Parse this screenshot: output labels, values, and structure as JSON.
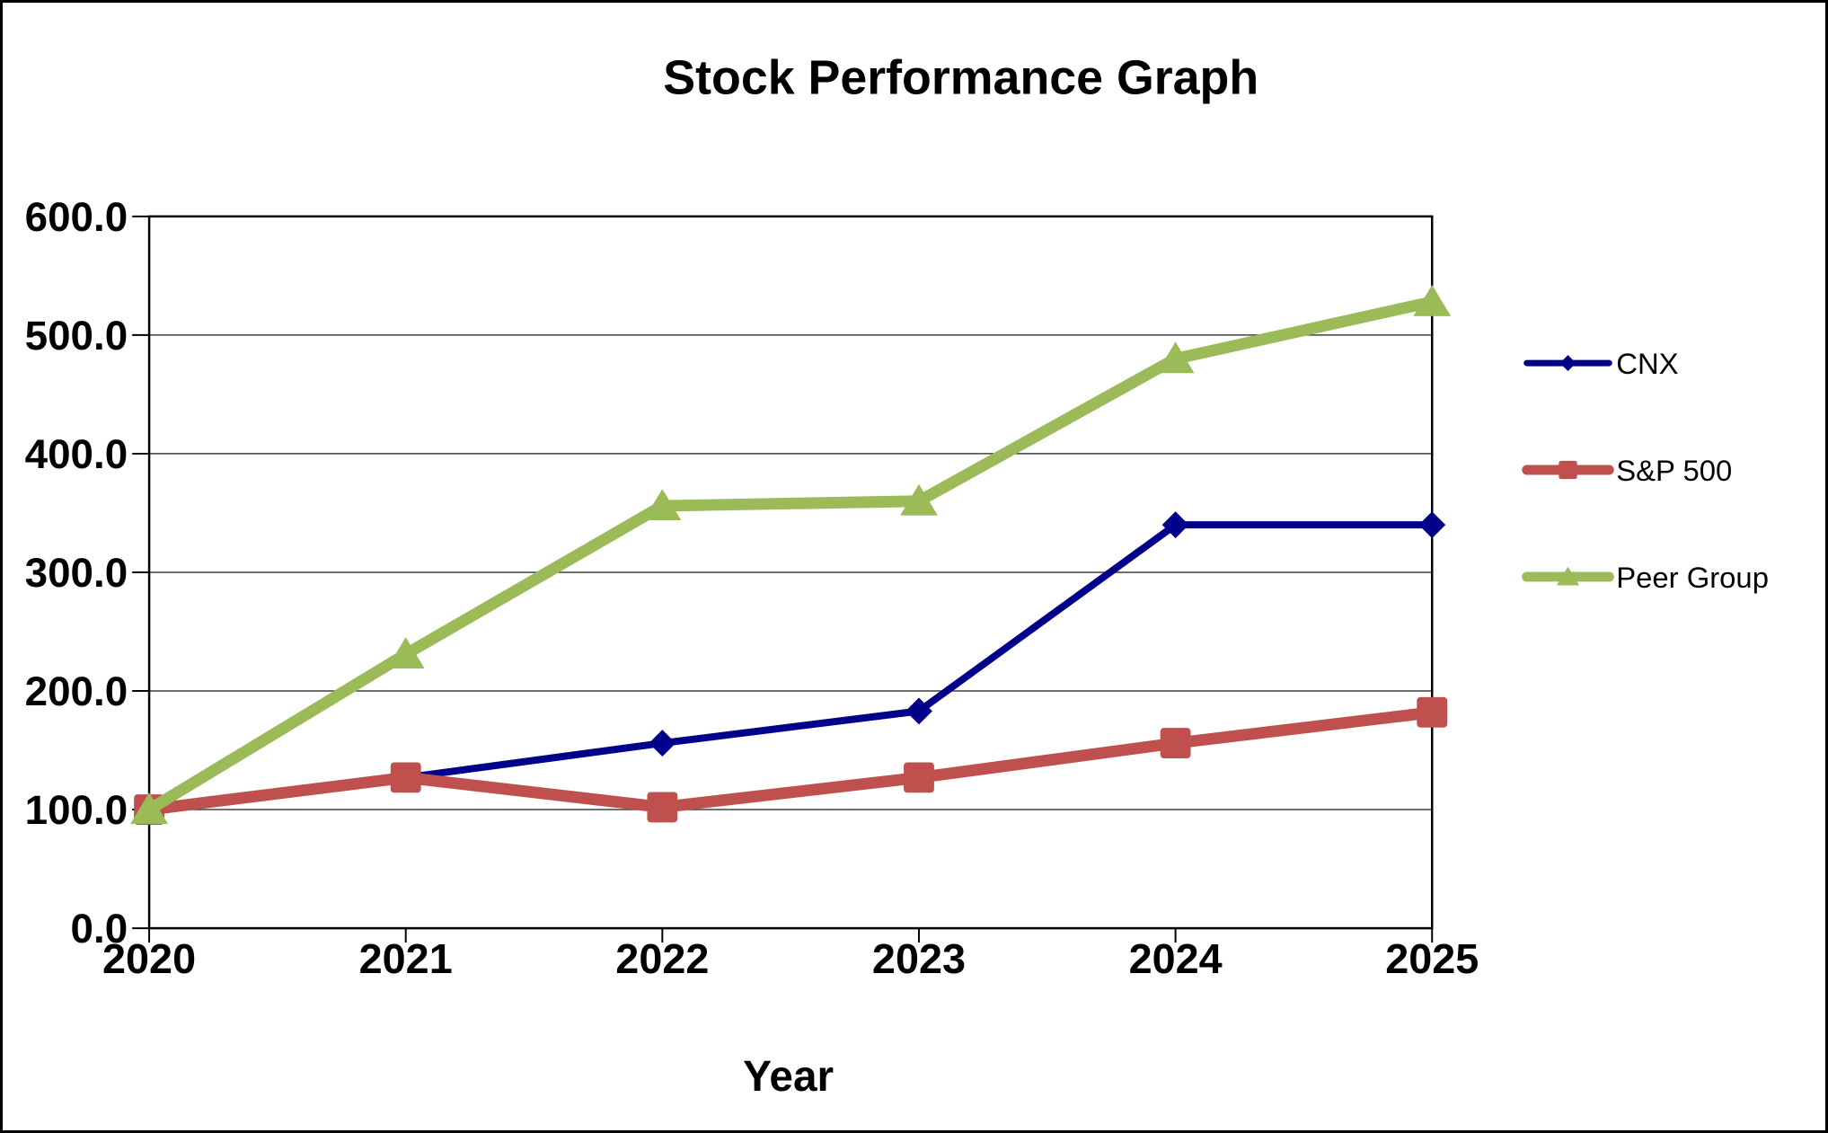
{
  "chart_data": {
    "type": "line",
    "title": "Stock Performance Graph",
    "xlabel": "Year",
    "x": [
      2020,
      2021,
      2022,
      2023,
      2024,
      2025
    ],
    "x_tick_labels": [
      "2020",
      "2021",
      "2022",
      "2023",
      "2024",
      "2025"
    ],
    "y_ticks": [
      0,
      100,
      200,
      300,
      400,
      500,
      600
    ],
    "y_tick_labels": [
      "0.0",
      "100.0",
      "200.0",
      "300.0",
      "400.0",
      "500.0",
      "600.0"
    ],
    "ylim": [
      0,
      600
    ],
    "grid": "horizontal",
    "legend_position": "right",
    "series": [
      {
        "name": "CNX",
        "color": "#00008B",
        "marker": "diamond",
        "values": [
          100,
          127,
          156,
          183,
          340,
          340
        ]
      },
      {
        "name": "S&P 500",
        "color": "#C0504D",
        "marker": "square",
        "values": [
          100,
          127,
          102,
          127,
          156,
          182
        ]
      },
      {
        "name": "Peer Group",
        "color": "#9BBB59",
        "marker": "triangle",
        "values": [
          100,
          231,
          356,
          360,
          480,
          528
        ]
      }
    ],
    "colors": {
      "axis": "#000000",
      "gridline": "#404040",
      "background": "#ffffff"
    }
  }
}
